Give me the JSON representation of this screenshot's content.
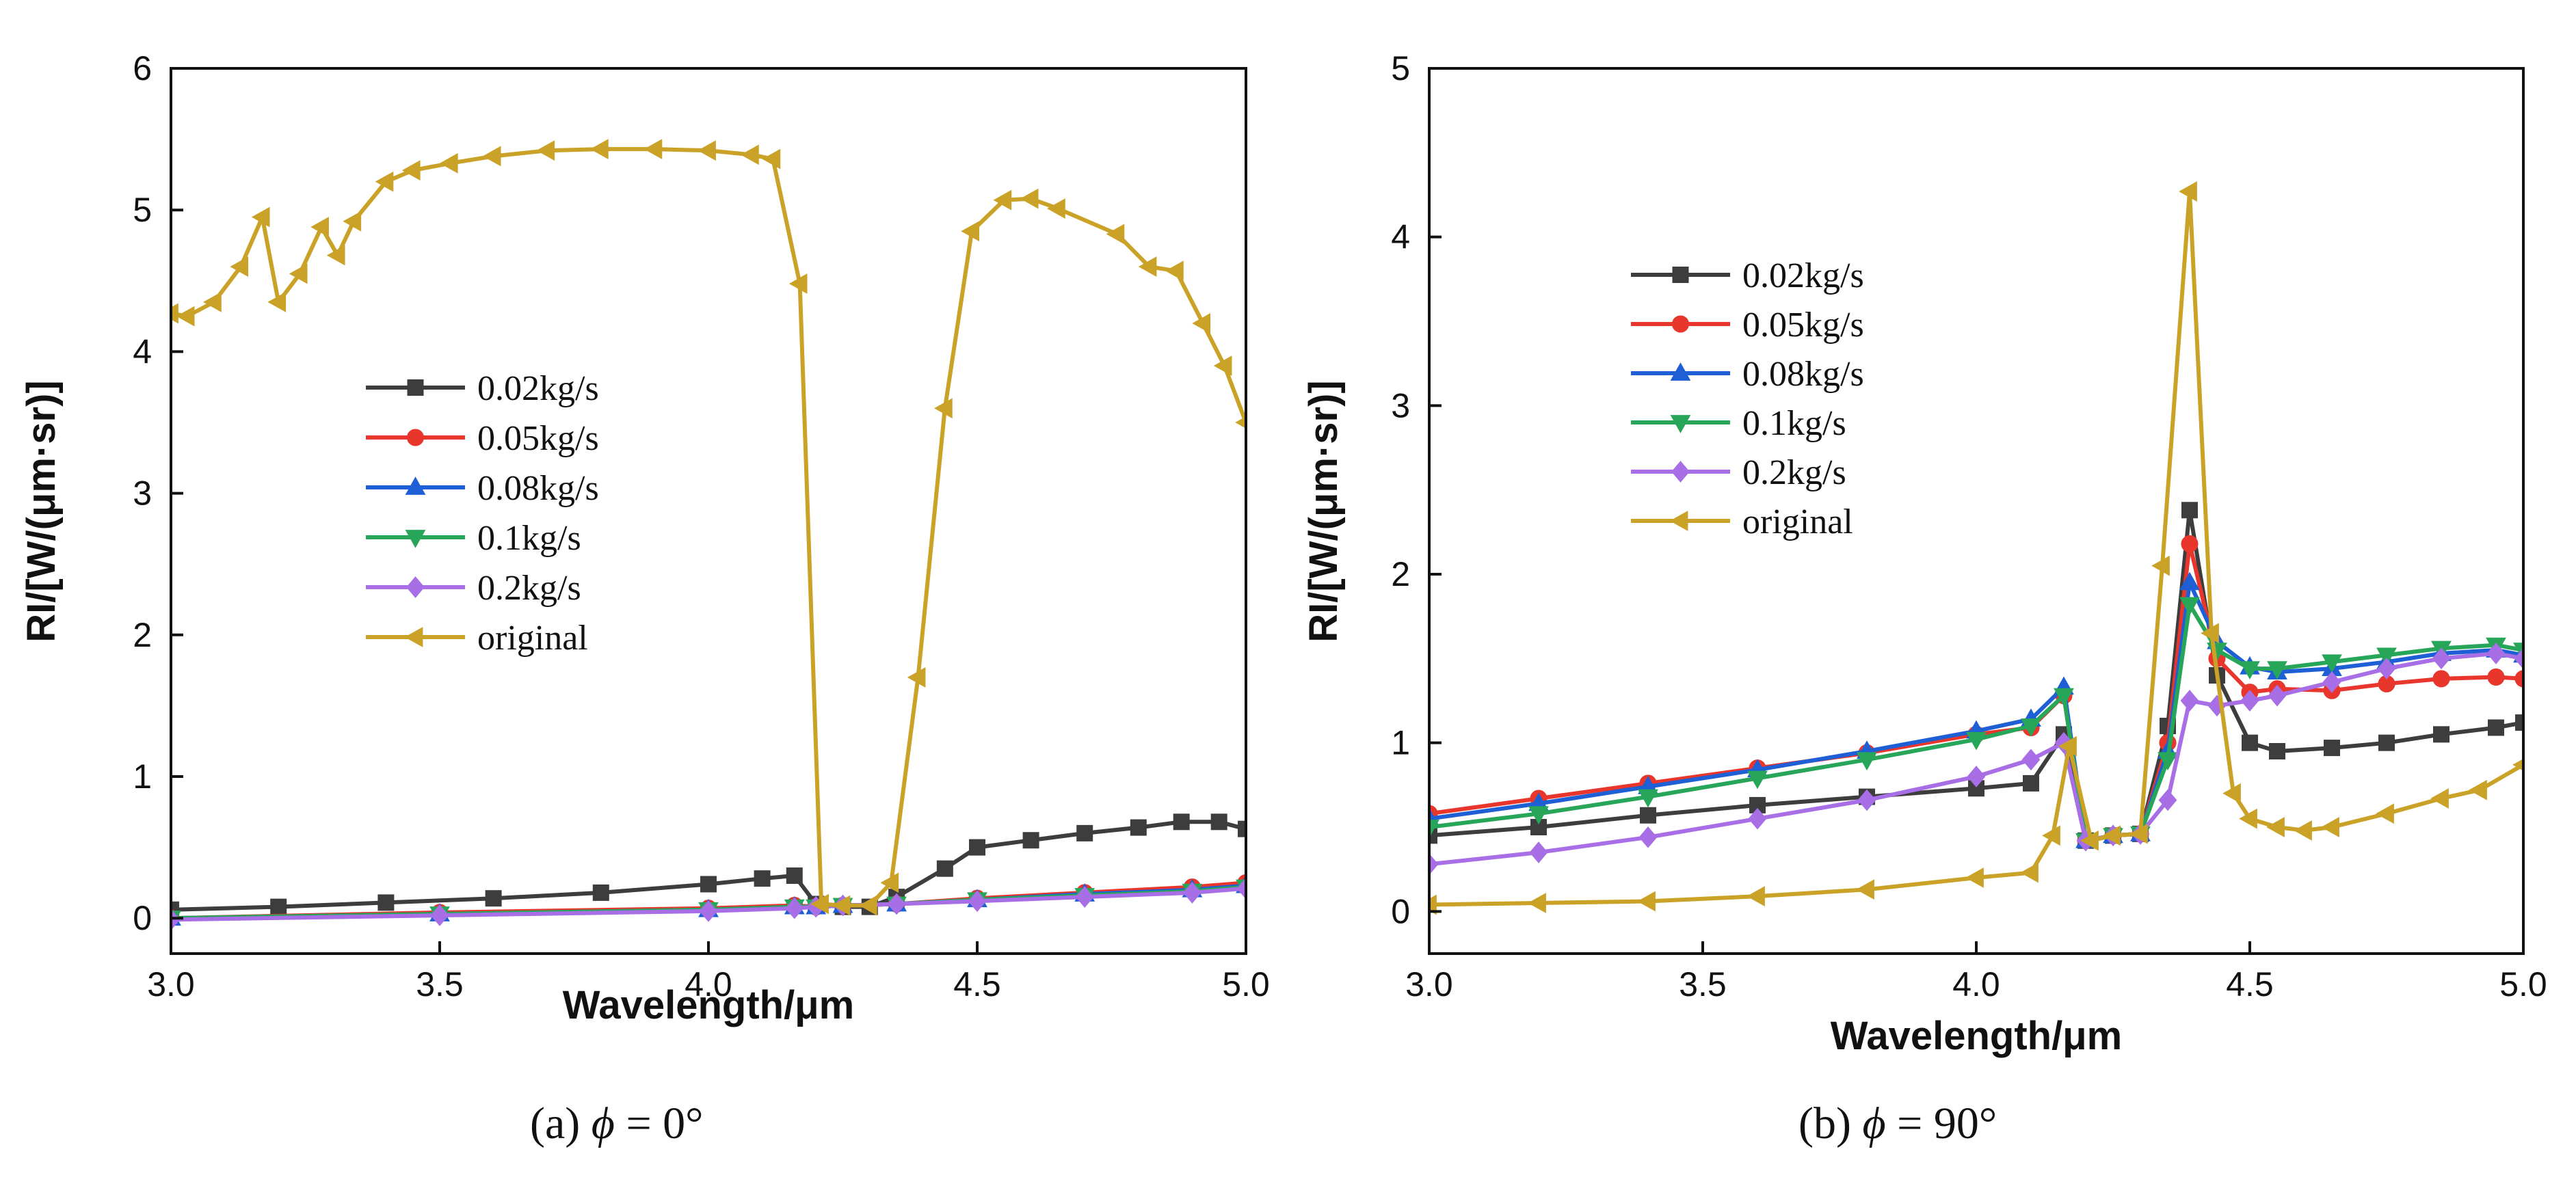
{
  "chart_data": [
    {
      "type": "line",
      "caption": {
        "prefix": "(a)",
        "symbol": "ϕ",
        "expr": " = 0°"
      },
      "xlabel": "Wavelength/μm",
      "ylabel": "RI/[W/(μm·sr)]",
      "xlim": [
        3.0,
        5.0
      ],
      "ylim": [
        -0.25,
        6.0
      ],
      "xticks": [
        "3.0",
        "3.5",
        "4.0",
        "4.5",
        "5.0"
      ],
      "xtick_values": [
        3.0,
        3.5,
        4.0,
        4.5,
        5.0
      ],
      "yticks": [
        "0",
        "1",
        "2",
        "3",
        "4",
        "5",
        "6"
      ],
      "ytick_values": [
        0,
        1,
        2,
        3,
        4,
        5,
        6
      ],
      "legend_position": "center-left",
      "series": [
        {
          "name": "0.02kg/s",
          "color": "#3d3d3d",
          "marker": "square",
          "x": [
            3.0,
            3.2,
            3.4,
            3.6,
            3.8,
            4.0,
            4.1,
            4.16,
            4.2,
            4.25,
            4.3,
            4.35,
            4.44,
            4.5,
            4.6,
            4.7,
            4.8,
            4.88,
            4.95,
            5.0
          ],
          "y": [
            0.06,
            0.08,
            0.11,
            0.14,
            0.18,
            0.24,
            0.28,
            0.3,
            0.1,
            0.08,
            0.08,
            0.15,
            0.35,
            0.5,
            0.55,
            0.6,
            0.64,
            0.68,
            0.68,
            0.63
          ]
        },
        {
          "name": "0.05kg/s",
          "color": "#e8362c",
          "marker": "circle",
          "x": [
            3.0,
            3.5,
            4.0,
            4.16,
            4.2,
            4.25,
            4.35,
            4.5,
            4.7,
            4.9,
            5.0
          ],
          "y": [
            0.0,
            0.04,
            0.07,
            0.09,
            0.08,
            0.09,
            0.1,
            0.14,
            0.18,
            0.22,
            0.25
          ]
        },
        {
          "name": "0.08kg/s",
          "color": "#1f5fd6",
          "marker": "triangle-up",
          "x": [
            3.0,
            3.5,
            4.0,
            4.16,
            4.2,
            4.25,
            4.35,
            4.5,
            4.7,
            4.9,
            5.0
          ],
          "y": [
            0.0,
            0.03,
            0.06,
            0.08,
            0.08,
            0.09,
            0.1,
            0.13,
            0.17,
            0.2,
            0.23
          ]
        },
        {
          "name": "0.1kg/s",
          "color": "#27a65a",
          "marker": "triangle-down",
          "x": [
            3.0,
            3.5,
            4.0,
            4.16,
            4.2,
            4.25,
            4.35,
            4.5,
            4.7,
            4.9,
            5.0
          ],
          "y": [
            0.0,
            0.03,
            0.06,
            0.08,
            0.08,
            0.09,
            0.1,
            0.13,
            0.16,
            0.19,
            0.22
          ]
        },
        {
          "name": "0.2kg/s",
          "color": "#a86ee6",
          "marker": "diamond",
          "x": [
            3.0,
            3.5,
            4.0,
            4.16,
            4.2,
            4.25,
            4.35,
            4.5,
            4.7,
            4.9,
            5.0
          ],
          "y": [
            -0.01,
            0.02,
            0.05,
            0.07,
            0.08,
            0.09,
            0.1,
            0.12,
            0.15,
            0.18,
            0.21
          ]
        },
        {
          "name": "original",
          "color": "#c9a227",
          "marker": "triangle-left",
          "x": [
            3.0,
            3.03,
            3.08,
            3.13,
            3.17,
            3.2,
            3.24,
            3.28,
            3.31,
            3.34,
            3.4,
            3.45,
            3.52,
            3.6,
            3.7,
            3.8,
            3.9,
            4.0,
            4.08,
            4.12,
            4.17,
            4.21,
            4.25,
            4.3,
            4.34,
            4.39,
            4.44,
            4.49,
            4.55,
            4.6,
            4.65,
            4.76,
            4.82,
            4.87,
            4.92,
            4.96,
            5.0
          ],
          "y": [
            4.27,
            4.25,
            4.35,
            4.6,
            4.95,
            4.35,
            4.55,
            4.88,
            4.68,
            4.92,
            5.2,
            5.28,
            5.33,
            5.38,
            5.42,
            5.43,
            5.43,
            5.42,
            5.39,
            5.36,
            4.48,
            0.1,
            0.09,
            0.09,
            0.25,
            1.7,
            3.6,
            4.85,
            5.07,
            5.08,
            5.01,
            4.83,
            4.6,
            4.57,
            4.2,
            3.9,
            3.5
          ]
        }
      ]
    },
    {
      "type": "line",
      "caption": {
        "prefix": "(b)",
        "symbol": "ϕ",
        "expr": " = 90°"
      },
      "xlabel": "Wavelength/μm",
      "ylabel": "RI/[W/(μm·sr)]",
      "xlim": [
        3.0,
        5.0
      ],
      "ylim": [
        -0.25,
        5.0
      ],
      "xticks": [
        "3.0",
        "3.5",
        "4.0",
        "4.5",
        "5.0"
      ],
      "xtick_values": [
        3.0,
        3.5,
        4.0,
        4.5,
        5.0
      ],
      "yticks": [
        "0",
        "1",
        "2",
        "3",
        "4",
        "5"
      ],
      "ytick_values": [
        0,
        1,
        2,
        3,
        4,
        5
      ],
      "legend_position": "top-left",
      "series": [
        {
          "name": "0.02kg/s",
          "color": "#3d3d3d",
          "marker": "square",
          "x": [
            3.0,
            3.2,
            3.4,
            3.6,
            3.8,
            4.0,
            4.1,
            4.16,
            4.2,
            4.25,
            4.3,
            4.35,
            4.39,
            4.44,
            4.5,
            4.55,
            4.65,
            4.75,
            4.85,
            4.95,
            5.0
          ],
          "y": [
            0.45,
            0.5,
            0.57,
            0.63,
            0.68,
            0.73,
            0.76,
            1.05,
            0.42,
            0.45,
            0.46,
            1.1,
            2.38,
            1.4,
            1.0,
            0.95,
            0.97,
            1.0,
            1.05,
            1.09,
            1.12
          ]
        },
        {
          "name": "0.05kg/s",
          "color": "#e8362c",
          "marker": "circle",
          "x": [
            3.0,
            3.2,
            3.4,
            3.6,
            3.8,
            4.0,
            4.1,
            4.16,
            4.2,
            4.25,
            4.3,
            4.35,
            4.39,
            4.44,
            4.5,
            4.55,
            4.65,
            4.75,
            4.85,
            4.95,
            5.0
          ],
          "y": [
            0.58,
            0.67,
            0.76,
            0.85,
            0.94,
            1.05,
            1.09,
            1.28,
            0.42,
            0.45,
            0.46,
            1.0,
            2.18,
            1.5,
            1.3,
            1.32,
            1.31,
            1.35,
            1.38,
            1.39,
            1.38
          ]
        },
        {
          "name": "0.08kg/s",
          "color": "#1f5fd6",
          "marker": "triangle-up",
          "x": [
            3.0,
            3.2,
            3.4,
            3.6,
            3.8,
            4.0,
            4.1,
            4.16,
            4.2,
            4.25,
            4.3,
            4.35,
            4.39,
            4.44,
            4.5,
            4.55,
            4.65,
            4.75,
            4.85,
            4.95,
            5.0
          ],
          "y": [
            0.55,
            0.64,
            0.74,
            0.84,
            0.95,
            1.07,
            1.14,
            1.33,
            0.42,
            0.45,
            0.46,
            0.95,
            1.95,
            1.6,
            1.45,
            1.42,
            1.44,
            1.48,
            1.53,
            1.55,
            1.52
          ]
        },
        {
          "name": "0.1kg/s",
          "color": "#27a65a",
          "marker": "triangle-down",
          "x": [
            3.0,
            3.2,
            3.4,
            3.6,
            3.8,
            4.0,
            4.1,
            4.16,
            4.2,
            4.25,
            4.3,
            4.35,
            4.39,
            4.44,
            4.5,
            4.55,
            4.65,
            4.75,
            4.85,
            4.95,
            5.0
          ],
          "y": [
            0.5,
            0.58,
            0.68,
            0.79,
            0.9,
            1.02,
            1.1,
            1.28,
            0.42,
            0.45,
            0.46,
            0.9,
            1.82,
            1.55,
            1.44,
            1.44,
            1.48,
            1.52,
            1.56,
            1.58,
            1.55
          ]
        },
        {
          "name": "0.2kg/s",
          "color": "#a86ee6",
          "marker": "diamond",
          "x": [
            3.0,
            3.2,
            3.4,
            3.6,
            3.8,
            4.0,
            4.1,
            4.16,
            4.2,
            4.25,
            4.3,
            4.35,
            4.39,
            4.44,
            4.5,
            4.55,
            4.65,
            4.75,
            4.85,
            4.95,
            5.0
          ],
          "y": [
            0.28,
            0.35,
            0.44,
            0.55,
            0.66,
            0.8,
            0.9,
            1.0,
            0.42,
            0.45,
            0.46,
            0.66,
            1.25,
            1.22,
            1.25,
            1.28,
            1.36,
            1.44,
            1.5,
            1.53,
            1.5
          ]
        },
        {
          "name": "original",
          "color": "#c9a227",
          "marker": "triangle-left",
          "x": [
            3.0,
            3.2,
            3.4,
            3.6,
            3.8,
            4.0,
            4.1,
            4.14,
            4.17,
            4.21,
            4.25,
            4.3,
            4.34,
            4.39,
            4.43,
            4.47,
            4.5,
            4.55,
            4.6,
            4.65,
            4.75,
            4.85,
            4.92,
            5.0
          ],
          "y": [
            0.04,
            0.05,
            0.06,
            0.09,
            0.13,
            0.2,
            0.23,
            0.45,
            0.98,
            0.42,
            0.45,
            0.46,
            2.05,
            4.27,
            1.65,
            0.7,
            0.55,
            0.5,
            0.48,
            0.5,
            0.58,
            0.67,
            0.72,
            0.87
          ]
        }
      ]
    }
  ]
}
